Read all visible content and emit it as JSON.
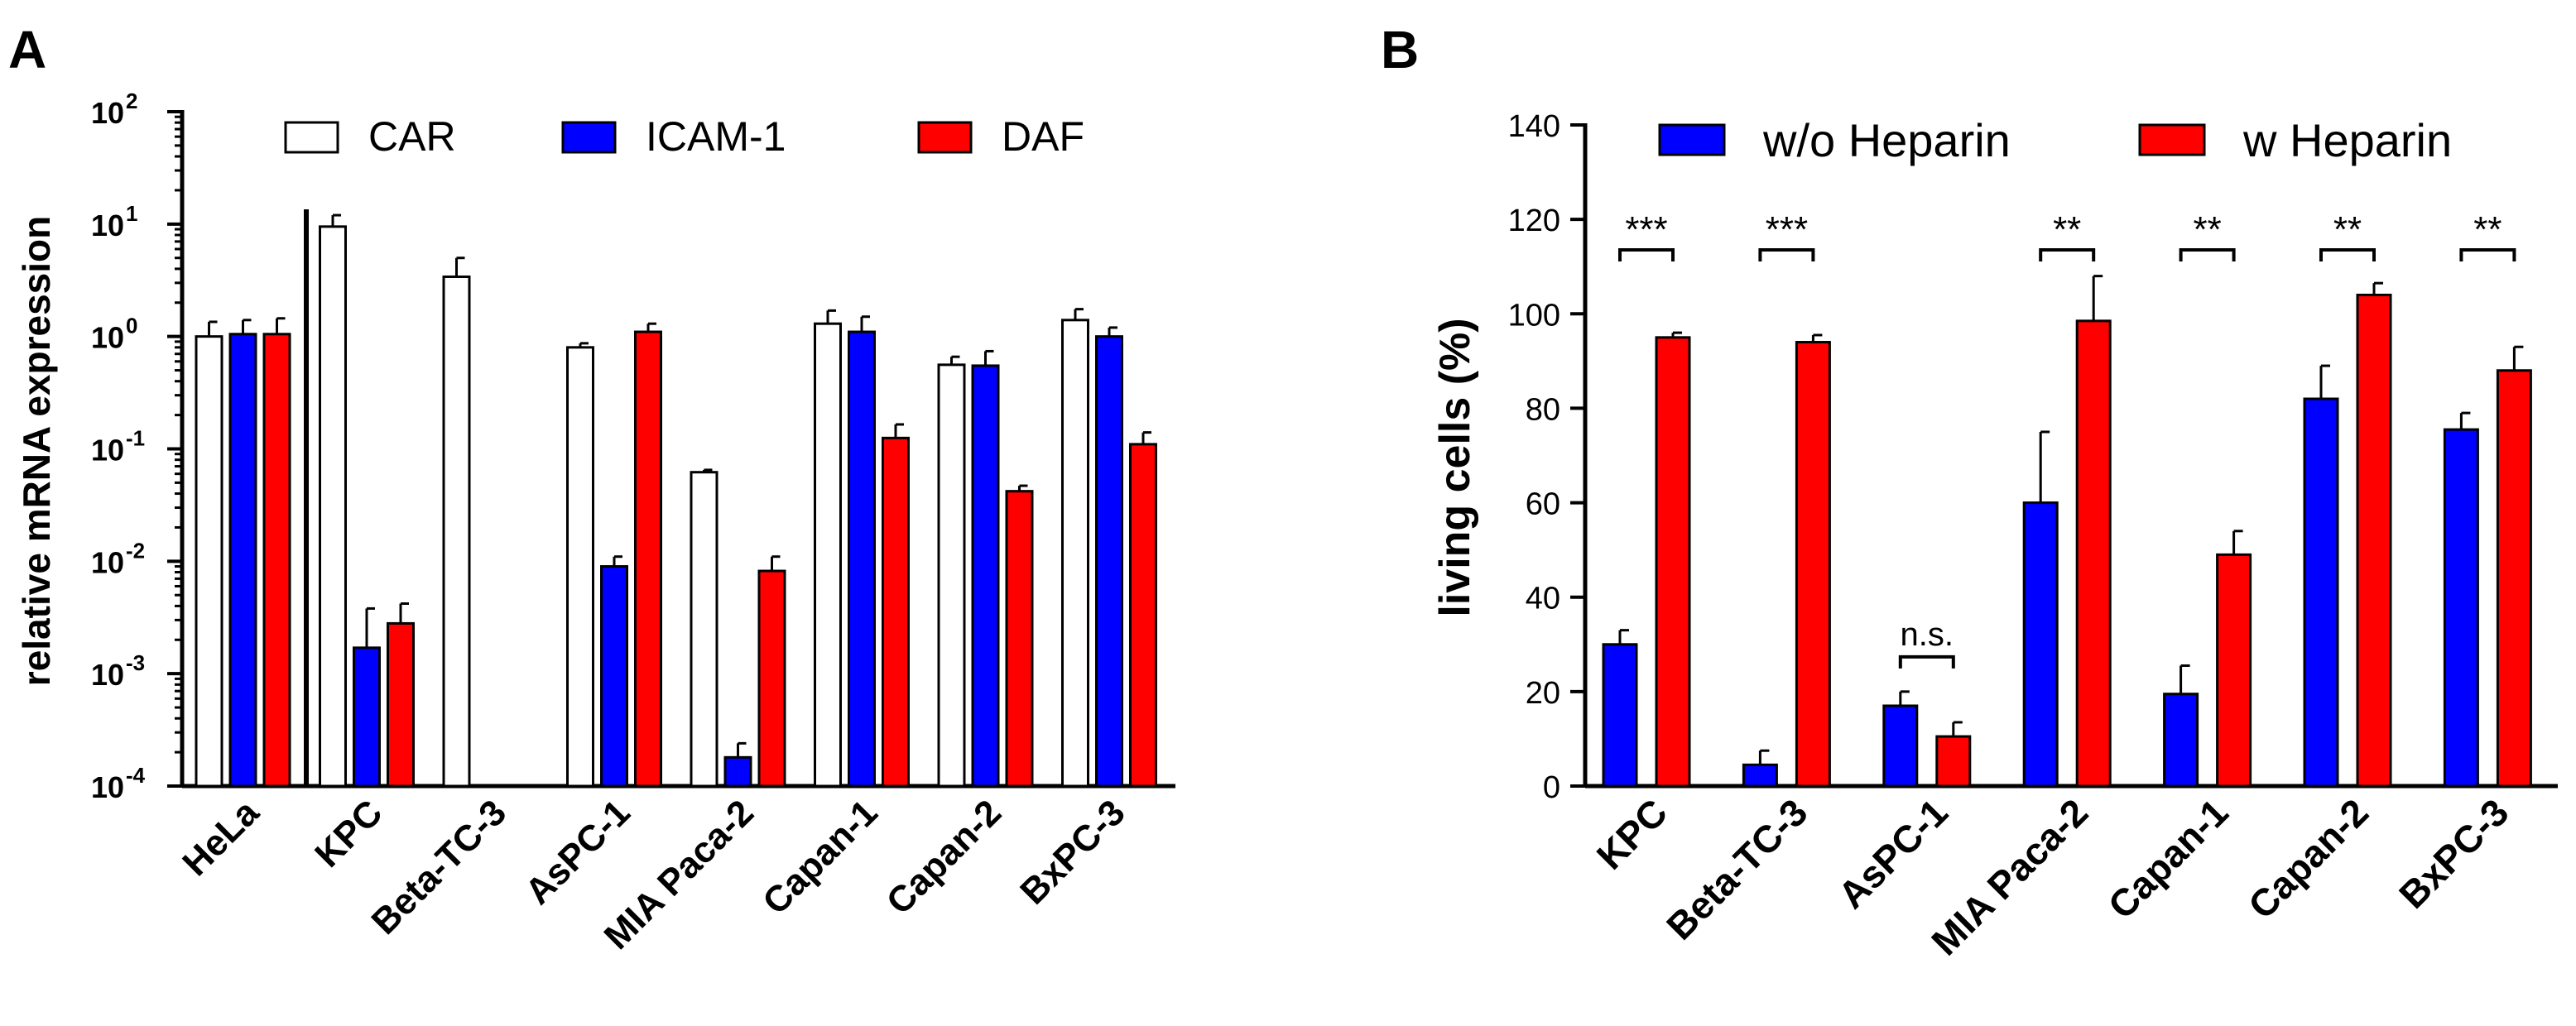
{
  "chart_data": [
    {
      "panel": "A",
      "type": "bar",
      "scale": "log",
      "ylabel": "relative mRNA expression",
      "ylim": [
        0.0001,
        100
      ],
      "yticks": [
        {
          "value": 100,
          "exp": "2"
        },
        {
          "value": 10,
          "exp": "1"
        },
        {
          "value": 1,
          "exp": "0"
        },
        {
          "value": 0.1,
          "exp": "-1"
        },
        {
          "value": 0.01,
          "exp": "-2"
        },
        {
          "value": 0.001,
          "exp": "-3"
        },
        {
          "value": 0.0001,
          "exp": "-4"
        }
      ],
      "tick_base": "10",
      "categories": [
        "HeLa",
        "KPC",
        "Beta-TC-3",
        "AsPC-1",
        "MIA Paca-2",
        "Capan-1",
        "Capan-2",
        "BxPC-3"
      ],
      "series": [
        {
          "name": "CAR",
          "color": "#ffffff",
          "values": [
            1.0,
            9.5,
            3.4,
            0.8,
            0.062,
            1.3,
            0.56,
            1.4
          ],
          "errors": [
            1.35,
            12.0,
            5.0,
            0.87,
            0.065,
            1.7,
            0.66,
            1.75
          ]
        },
        {
          "name": "ICAM-1",
          "color": "#0000ff",
          "values": [
            1.05,
            0.0017,
            null,
            0.009,
            0.00018,
            1.1,
            0.55,
            1.0
          ],
          "errors": [
            1.4,
            0.0038,
            null,
            0.011,
            0.00024,
            1.5,
            0.74,
            1.2
          ]
        },
        {
          "name": "DAF",
          "color": "#ff0000",
          "values": [
            1.05,
            0.0028,
            null,
            1.1,
            0.0082,
            0.125,
            0.042,
            0.11
          ],
          "errors": [
            1.45,
            0.0042,
            null,
            1.3,
            0.011,
            0.165,
            0.047,
            0.14
          ]
        }
      ]
    },
    {
      "panel": "B",
      "type": "bar",
      "ylabel": "living cells (%)",
      "ylim": [
        0,
        140
      ],
      "yticks": [
        0,
        20,
        40,
        60,
        80,
        100,
        120,
        140
      ],
      "categories": [
        "KPC",
        "Beta-TC-3",
        "AsPC-1",
        "MIA Paca-2",
        "Capan-1",
        "Capan-2",
        "BxPC-3"
      ],
      "series": [
        {
          "name": "w/o Heparin",
          "color": "#0000ff",
          "values": [
            30,
            4.5,
            17,
            60,
            19.5,
            82,
            75.5
          ],
          "errors": [
            33,
            7.5,
            20,
            75,
            25.5,
            89,
            79
          ]
        },
        {
          "name": "w Heparin",
          "color": "#ff0000",
          "values": [
            95,
            94,
            10.5,
            98.5,
            49,
            104,
            88
          ],
          "errors": [
            96,
            95.5,
            13.5,
            108,
            54,
            106.5,
            93
          ]
        }
      ],
      "significance": [
        "***",
        "***",
        "n.s.",
        "**",
        "**",
        "**",
        "**"
      ]
    }
  ]
}
